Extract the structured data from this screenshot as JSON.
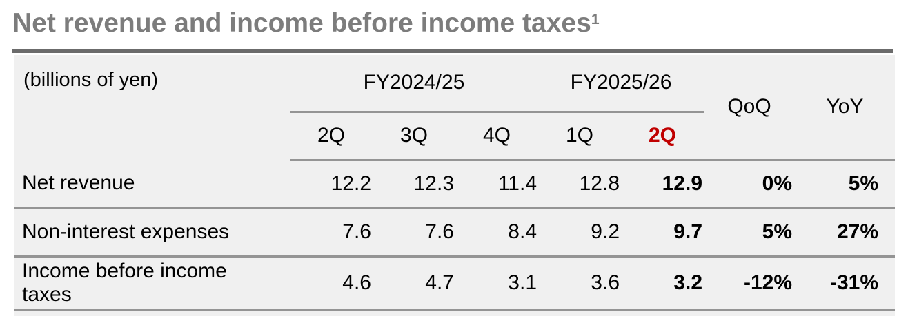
{
  "page": {
    "title": "Net revenue and income before income taxes",
    "title_superscript": "1"
  },
  "table": {
    "unit_label": "(billions of yen)",
    "groups": [
      {
        "label": "FY2024/25"
      },
      {
        "label": "FY2025/26"
      }
    ],
    "quarter_headers": [
      "2Q",
      "3Q",
      "4Q",
      "1Q",
      "2Q"
    ],
    "highlighted_quarter": "2Q",
    "highlighted_quarter_index": 4,
    "change_headers": [
      "QoQ",
      "YoY"
    ],
    "rows": [
      {
        "label": "Net revenue",
        "values": [
          "12.2",
          "12.3",
          "11.4",
          "12.8",
          "12.9"
        ],
        "qoq": "0%",
        "yoy": "5%"
      },
      {
        "label": "Non-interest expenses",
        "values": [
          "7.6",
          "7.6",
          "8.4",
          "9.2",
          "9.7"
        ],
        "qoq": "5%",
        "yoy": "27%"
      },
      {
        "label": "Income before income taxes",
        "values": [
          "4.6",
          "4.7",
          "3.1",
          "3.6",
          "3.2"
        ],
        "qoq": "-12%",
        "yoy": "-31%"
      }
    ]
  },
  "colors": {
    "highlight_red": "#c00000",
    "title_gray": "#7c7c7c",
    "title_rule_gray": "#6b6b6b",
    "panel_background": "#f0f0f0",
    "table_line_gray": "#949494",
    "text_black": "#000000"
  }
}
